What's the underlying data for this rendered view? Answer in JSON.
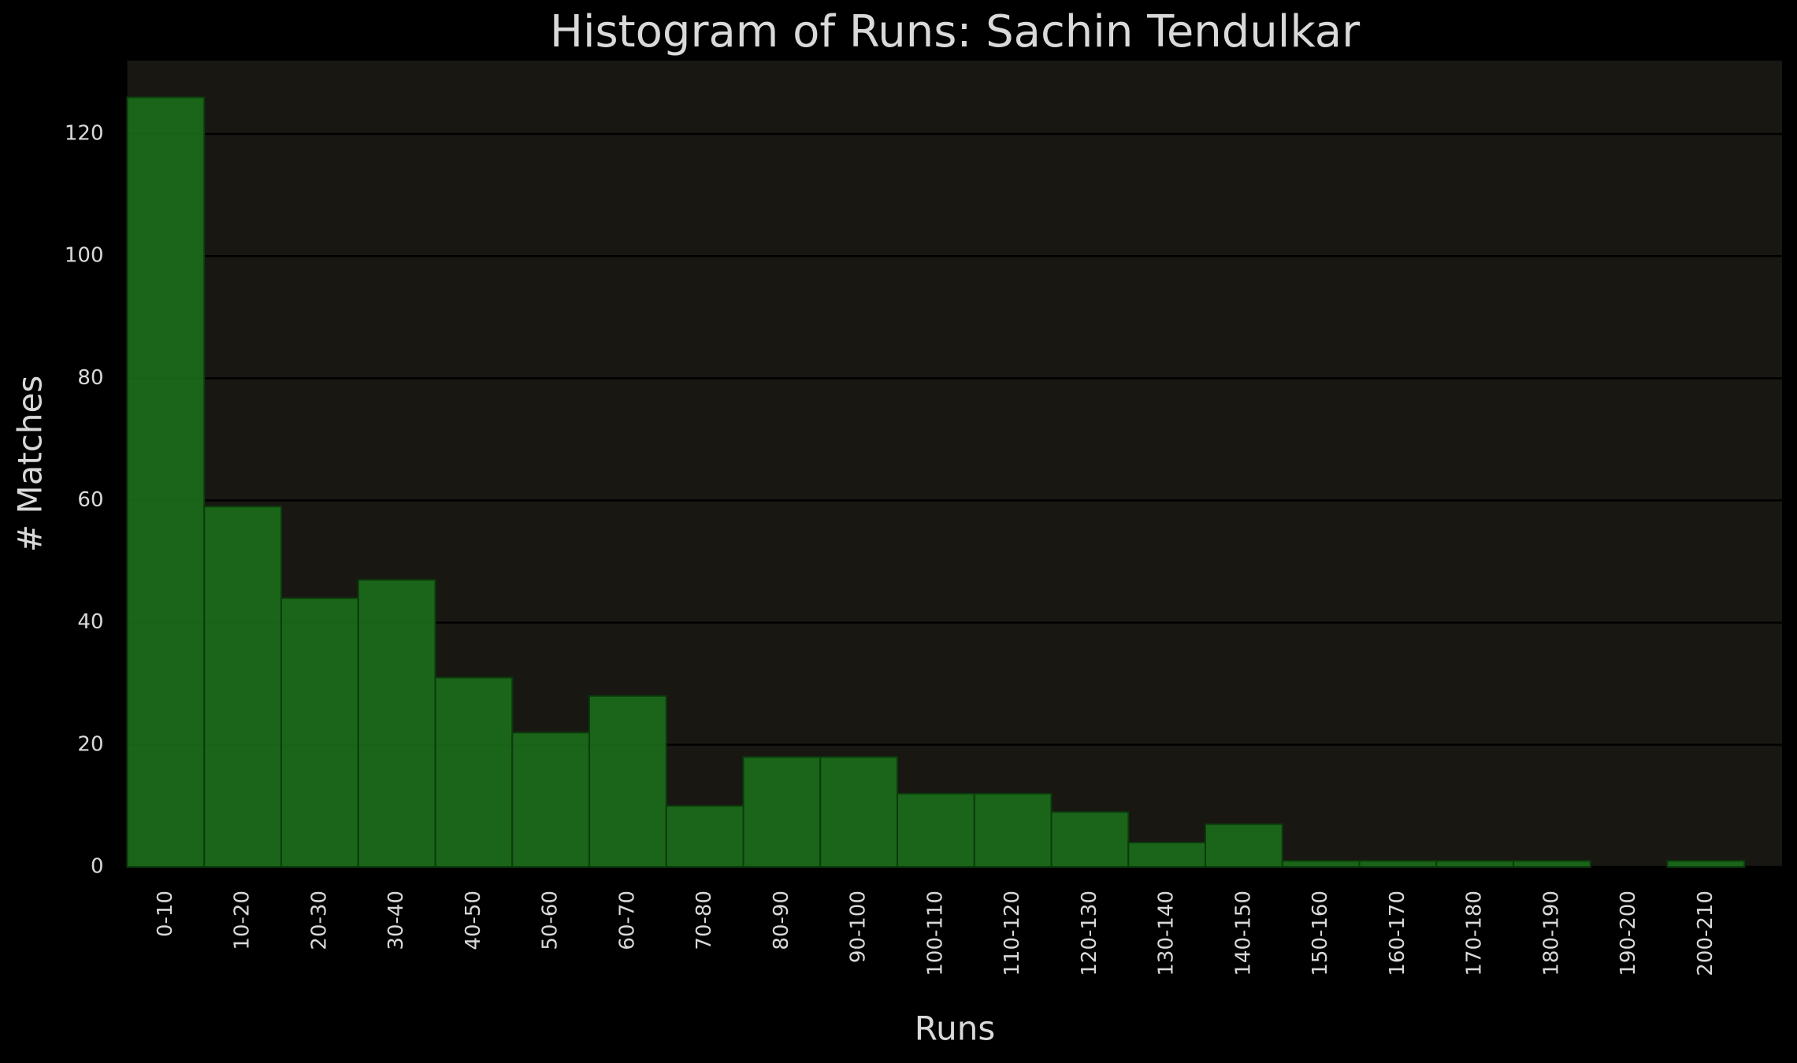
{
  "chart_data": {
    "type": "bar",
    "title": "Histogram of Runs: Sachin Tendulkar",
    "xlabel": "Runs",
    "ylabel": "# Matches",
    "categories": [
      "0-10",
      "10-20",
      "20-30",
      "30-40",
      "40-50",
      "50-60",
      "60-70",
      "70-80",
      "80-90",
      "90-100",
      "100-110",
      "110-120",
      "120-130",
      "130-140",
      "140-150",
      "150-160",
      "160-170",
      "170-180",
      "180-190",
      "190-200",
      "200-210"
    ],
    "values": [
      126,
      59,
      44,
      47,
      31,
      22,
      28,
      10,
      18,
      18,
      12,
      12,
      9,
      4,
      7,
      1,
      1,
      1,
      1,
      0,
      1
    ],
    "color": "#1b6e1b",
    "ylim": [
      0,
      132
    ],
    "yticks": [
      0,
      20,
      40,
      60,
      80,
      100,
      120
    ],
    "grid": true
  }
}
